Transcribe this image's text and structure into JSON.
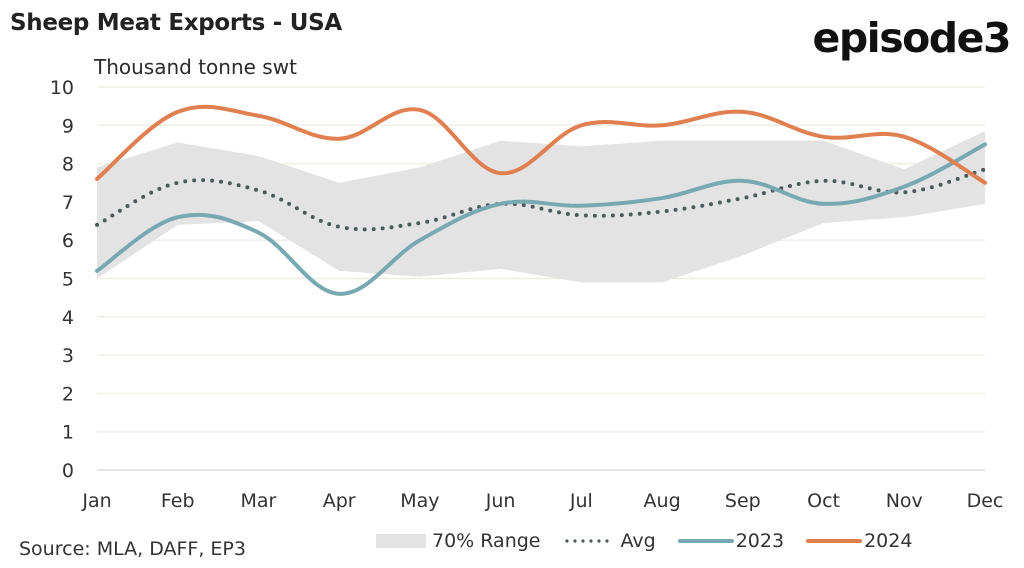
{
  "header": {
    "title": "Sheep Meat Exports - USA",
    "brand": "episode3",
    "unit_label": "Thousand tonne swt"
  },
  "footer": {
    "source": "Source: MLA, DAFF, EP3"
  },
  "colors": {
    "range": "#e3e3e3",
    "avg": "#4d5a5c",
    "y2023": "#78a9b0",
    "y2024": "#e07f4f",
    "grid": "#efeee6"
  },
  "legend": [
    {
      "key": "range",
      "label": "70% Range"
    },
    {
      "key": "avg",
      "label": "Avg"
    },
    {
      "key": "y2023",
      "label": "2023"
    },
    {
      "key": "y2024",
      "label": "2024"
    }
  ],
  "chart_data": {
    "type": "line",
    "title": "Sheep Meat Exports - USA",
    "xlabel": "",
    "ylabel": "Thousand tonne swt",
    "ylim": [
      0,
      10
    ],
    "yticks": [
      "0",
      "1",
      "2",
      "3",
      "4",
      "5",
      "6",
      "7",
      "8",
      "9",
      "10"
    ],
    "grid": true,
    "legend_position": "bottom",
    "categories": [
      "Jan",
      "Feb",
      "Mar",
      "Apr",
      "May",
      "Jun",
      "Jul",
      "Aug",
      "Sep",
      "Oct",
      "Nov",
      "Dec"
    ],
    "range_band": {
      "name": "70% Range",
      "upper": [
        7.9,
        8.55,
        8.2,
        7.5,
        7.9,
        8.6,
        8.45,
        8.6,
        8.6,
        8.6,
        7.85,
        8.85
      ],
      "lower": [
        5.0,
        6.4,
        6.5,
        5.2,
        5.05,
        5.25,
        4.9,
        4.9,
        5.6,
        6.45,
        6.6,
        6.95
      ]
    },
    "series": [
      {
        "name": "Avg",
        "style": "dotted",
        "values": [
          6.4,
          7.5,
          7.3,
          6.35,
          6.45,
          6.95,
          6.65,
          6.75,
          7.1,
          7.55,
          7.25,
          7.85
        ]
      },
      {
        "name": "2023",
        "style": "solid",
        "values": [
          5.2,
          6.6,
          6.2,
          4.6,
          6.0,
          6.95,
          6.9,
          7.1,
          7.55,
          6.95,
          7.4,
          8.5
        ]
      },
      {
        "name": "2024",
        "style": "solid",
        "values": [
          7.6,
          9.35,
          9.25,
          8.65,
          9.4,
          7.75,
          9.0,
          9.0,
          9.35,
          8.7,
          8.7,
          7.5
        ]
      }
    ]
  }
}
